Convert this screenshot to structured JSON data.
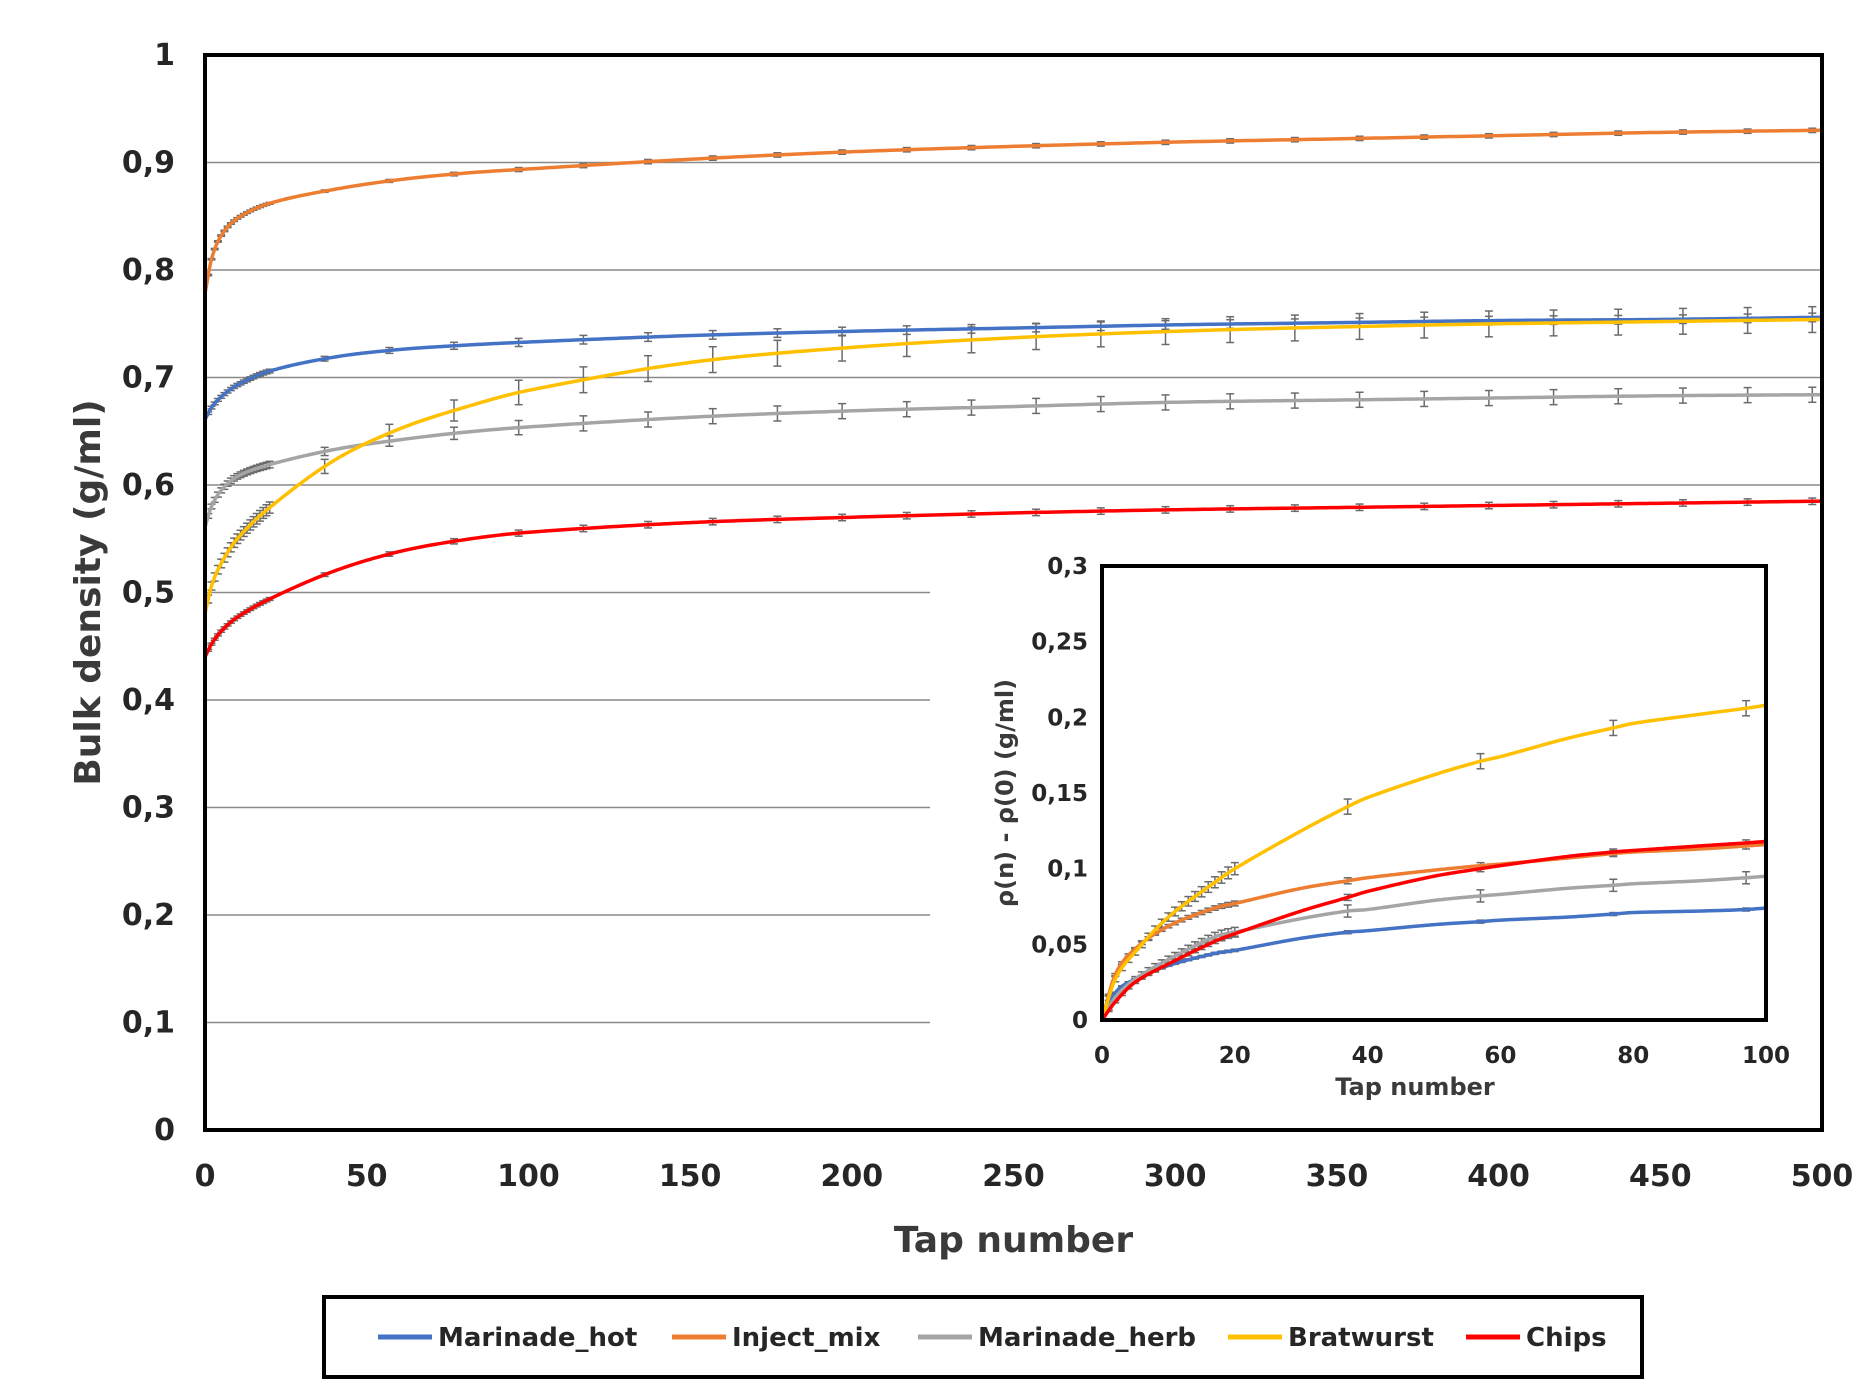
{
  "chart_data": [
    {
      "type": "line",
      "name": "main",
      "xlabel": "Tap number",
      "ylabel": "Bulk density (g/ml)",
      "xlim": [
        0,
        500
      ],
      "ylim": [
        0,
        1
      ],
      "x_ticks": [
        0,
        50,
        100,
        150,
        200,
        250,
        300,
        350,
        400,
        450,
        500
      ],
      "y_ticks": [
        0,
        0.1,
        0.2,
        0.3,
        0.4,
        0.5,
        0.6,
        0.7,
        0.8,
        0.9,
        1
      ],
      "x_tick_labels": [
        "0",
        "50",
        "100",
        "150",
        "200",
        "250",
        "300",
        "350",
        "400",
        "450",
        "500"
      ],
      "y_tick_labels": [
        "0",
        "0,1",
        "0,2",
        "0,3",
        "0,4",
        "0,5",
        "0,6",
        "0,7",
        "0,8",
        "0,9",
        "1"
      ],
      "grid": true,
      "legend": "bottom",
      "error_bars": true,
      "x": [
        0,
        2,
        5,
        10,
        20,
        40,
        60,
        80,
        100,
        150,
        200,
        250,
        300,
        350,
        400,
        450,
        500
      ],
      "series": [
        {
          "name": "Marinade_hot",
          "color": "#4472C4",
          "values": [
            0.661,
            0.672,
            0.682,
            0.693,
            0.706,
            0.719,
            0.726,
            0.73,
            0.733,
            0.739,
            0.743,
            0.746,
            0.749,
            0.751,
            0.753,
            0.754,
            0.756
          ]
        },
        {
          "name": "Inject_mix",
          "color": "#ED7D31",
          "values": [
            0.778,
            0.81,
            0.832,
            0.848,
            0.862,
            0.875,
            0.884,
            0.89,
            0.894,
            0.903,
            0.91,
            0.915,
            0.919,
            0.922,
            0.925,
            0.928,
            0.93
          ]
        },
        {
          "name": "Marinade_herb",
          "color": "#A5A5A5",
          "values": [
            0.561,
            0.58,
            0.595,
            0.608,
            0.619,
            0.633,
            0.642,
            0.649,
            0.654,
            0.663,
            0.669,
            0.673,
            0.677,
            0.679,
            0.681,
            0.683,
            0.684
          ]
        },
        {
          "name": "Bratwurst",
          "color": "#FFC000",
          "values": [
            0.48,
            0.506,
            0.527,
            0.55,
            0.579,
            0.623,
            0.652,
            0.672,
            0.688,
            0.714,
            0.728,
            0.737,
            0.743,
            0.747,
            0.75,
            0.752,
            0.754
          ]
        },
        {
          "name": "Chips",
          "color": "#FF0000",
          "values": [
            0.44,
            0.452,
            0.464,
            0.477,
            0.494,
            0.52,
            0.538,
            0.549,
            0.556,
            0.565,
            0.57,
            0.574,
            0.577,
            0.579,
            0.581,
            0.583,
            0.585
          ]
        }
      ]
    },
    {
      "type": "line",
      "name": "inset",
      "xlabel": "Tap number",
      "ylabel": "ρ(n) - ρ(0) (g/ml)",
      "xlim": [
        0,
        100
      ],
      "ylim": [
        0,
        0.3
      ],
      "x_ticks": [
        0,
        20,
        40,
        60,
        80,
        100
      ],
      "y_ticks": [
        0,
        0.05,
        0.1,
        0.15,
        0.2,
        0.25,
        0.3
      ],
      "x_tick_labels": [
        "0",
        "20",
        "40",
        "60",
        "80",
        "100"
      ],
      "y_tick_labels": [
        "0",
        "0,05",
        "0,1",
        "0,15",
        "0,2",
        "0,25",
        "0,3"
      ],
      "grid": false,
      "error_bars": true,
      "x": [
        0,
        2,
        5,
        10,
        17,
        20,
        30,
        37,
        40,
        50,
        57,
        60,
        70,
        77,
        80,
        90,
        97,
        100
      ],
      "series": [
        {
          "name": "Marinade_hot",
          "color": "#4472C4",
          "values": [
            0,
            0.018,
            0.027,
            0.036,
            0.044,
            0.046,
            0.054,
            0.058,
            0.059,
            0.063,
            0.065,
            0.066,
            0.068,
            0.07,
            0.071,
            0.072,
            0.073,
            0.074
          ]
        },
        {
          "name": "Inject_mix",
          "color": "#ED7D31",
          "values": [
            0,
            0.03,
            0.047,
            0.062,
            0.074,
            0.077,
            0.087,
            0.092,
            0.094,
            0.099,
            0.102,
            0.103,
            0.107,
            0.11,
            0.111,
            0.113,
            0.115,
            0.116
          ]
        },
        {
          "name": "Marinade_herb",
          "color": "#A5A5A5",
          "values": [
            0,
            0.015,
            0.027,
            0.04,
            0.055,
            0.058,
            0.067,
            0.072,
            0.073,
            0.079,
            0.082,
            0.083,
            0.087,
            0.089,
            0.09,
            0.092,
            0.094,
            0.095
          ]
        },
        {
          "name": "Bratwurst",
          "color": "#FFC000",
          "values": [
            0,
            0.027,
            0.045,
            0.068,
            0.091,
            0.1,
            0.125,
            0.141,
            0.147,
            0.162,
            0.171,
            0.174,
            0.186,
            0.193,
            0.196,
            0.202,
            0.206,
            0.208
          ]
        },
        {
          "name": "Chips",
          "color": "#FF0000",
          "values": [
            0,
            0.012,
            0.025,
            0.037,
            0.052,
            0.057,
            0.072,
            0.081,
            0.085,
            0.095,
            0.1,
            0.102,
            0.108,
            0.111,
            0.112,
            0.115,
            0.117,
            0.118
          ]
        }
      ]
    }
  ]
}
